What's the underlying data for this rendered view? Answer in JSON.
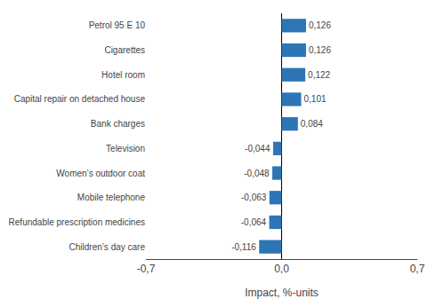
{
  "chart_data": {
    "type": "bar",
    "orientation": "horizontal",
    "categories": [
      "Children’s day care",
      "Refundable prescription medicines",
      "Mobile telephone",
      "Women’s outdoor coat",
      "Television",
      "Bank charges",
      "Capital repair on detached house",
      "Hotel room",
      "Cigarettes",
      "Petrol 95 E 10"
    ],
    "values": [
      -0.116,
      -0.064,
      -0.063,
      -0.048,
      -0.044,
      0.084,
      0.101,
      0.122,
      0.126,
      0.126
    ],
    "value_labels": [
      "-0,116",
      "-0,064",
      "-0,063",
      "-0,048",
      "-0,044",
      "0,084",
      "0,101",
      "0,122",
      "0,126",
      "0,126"
    ],
    "data_labels": true,
    "color": "#2E75B6",
    "xlabel": "Impact, %-units",
    "xlim": [
      -0.7,
      0.7
    ],
    "xticks": [
      {
        "value": -0.7,
        "label": "-0,7"
      },
      {
        "value": 0.0,
        "label": "0,0"
      },
      {
        "value": 0.7,
        "label": "0,7"
      }
    ],
    "grid": true
  }
}
